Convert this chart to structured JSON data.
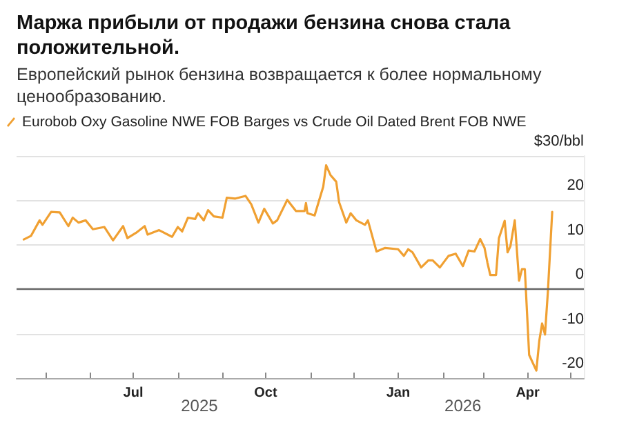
{
  "chart_data": {
    "type": "line",
    "title": "Маржа прибыли от продажи бензина снова стала положительной.",
    "subtitle": "Европейский рынок бензина возвращается к более нормальному ценообразованию.",
    "x": [
      "2025-04-16",
      "2025-04-21",
      "2025-04-27",
      "2025-04-29",
      "2025-05-05",
      "2025-05-11",
      "2025-05-17",
      "2025-05-20",
      "2025-05-24",
      "2025-05-29",
      "2025-06-03",
      "2025-06-11",
      "2025-06-17",
      "2025-06-24",
      "2025-06-27",
      "2025-07-03",
      "2025-07-09",
      "2025-07-11",
      "2025-07-19",
      "2025-07-28",
      "2025-08-01",
      "2025-08-04",
      "2025-08-08",
      "2025-08-13",
      "2025-08-15",
      "2025-08-19",
      "2025-08-22",
      "2025-08-26",
      "2025-09-01",
      "2025-09-04",
      "2025-09-10",
      "2025-09-17",
      "2025-09-21",
      "2025-09-26",
      "2025-09-30",
      "2025-10-06",
      "2025-10-09",
      "2025-10-16",
      "2025-10-22",
      "2025-10-28",
      "2025-10-29",
      "2025-10-30",
      "2025-11-04",
      "2025-11-10",
      "2025-11-12",
      "2025-11-15",
      "2025-11-19",
      "2025-11-21",
      "2025-11-26",
      "2025-11-29",
      "2025-12-03",
      "2025-12-09",
      "2025-12-11",
      "2025-12-17",
      "2025-12-23",
      "2026-01-01",
      "2026-01-05",
      "2026-01-08",
      "2026-01-11",
      "2026-01-17",
      "2026-01-22",
      "2026-01-25",
      "2026-01-30",
      "2026-02-05",
      "2026-02-10",
      "2026-02-15",
      "2026-02-19",
      "2026-02-23",
      "2026-02-27",
      "2026-03-02",
      "2026-03-04",
      "2026-03-06",
      "2026-03-10",
      "2026-03-12",
      "2026-03-16",
      "2026-03-18",
      "2026-03-20",
      "2026-03-23",
      "2026-03-26",
      "2026-03-28",
      "2026-03-30",
      "2026-04-02",
      "2026-04-07",
      "2026-04-09",
      "2026-04-11",
      "2026-04-13",
      "2026-04-15",
      "2026-04-18"
    ],
    "series": [
      {
        "name": "Eurobob Oxy Gasoline NWE FOB Barges vs Crude Oil Dated Brent FOB NWE",
        "color": "#f0a032",
        "values": [
          11.2,
          12.0,
          15.5,
          14.5,
          17.4,
          17.3,
          14.2,
          16.1,
          15.0,
          15.5,
          13.5,
          14.0,
          11.0,
          14.2,
          11.5,
          12.7,
          14.2,
          12.3,
          13.3,
          11.8,
          14.0,
          13.0,
          16.1,
          15.8,
          17.1,
          15.5,
          17.8,
          16.4,
          16.1,
          20.6,
          20.4,
          21.0,
          19.1,
          15.0,
          18.1,
          14.8,
          15.5,
          20.1,
          17.6,
          17.6,
          19.4,
          17.1,
          16.6,
          23.1,
          27.9,
          25.7,
          24.2,
          19.6,
          15.0,
          17.1,
          15.5,
          14.5,
          15.5,
          8.5,
          9.3,
          9.0,
          7.5,
          9.0,
          8.3,
          4.9,
          6.5,
          6.5,
          4.9,
          7.5,
          8.0,
          5.2,
          8.7,
          8.5,
          11.3,
          9.3,
          6.0,
          3.2,
          3.2,
          11.5,
          15.4,
          8.3,
          9.7,
          15.5,
          1.9,
          4.5,
          4.5,
          -14.8,
          -18.3,
          -11.7,
          -7.7,
          -10.2,
          -0.6,
          17.4
        ]
      }
    ],
    "xlim": [
      "2025-04-11",
      "2026-05-10"
    ],
    "xticks": [
      {
        "value": "2025-05-01",
        "label": null
      },
      {
        "value": "2025-06-01",
        "label": null
      },
      {
        "value": "2025-07-01",
        "label": "Jul"
      },
      {
        "value": "2025-08-01",
        "label": null
      },
      {
        "value": "2025-09-01",
        "label": null
      },
      {
        "value": "2025-10-01",
        "label": "Oct"
      },
      {
        "value": "2025-11-01",
        "label": null
      },
      {
        "value": "2025-12-01",
        "label": null
      },
      {
        "value": "2026-01-01",
        "label": "Jan"
      },
      {
        "value": "2026-02-01",
        "label": null
      },
      {
        "value": "2026-03-01",
        "label": null
      },
      {
        "value": "2026-04-01",
        "label": "Apr"
      },
      {
        "value": "2026-05-01",
        "label": null
      }
    ],
    "ylim": [
      -20,
      30
    ],
    "yticks": [
      -20,
      -10,
      0,
      10,
      20,
      {
        "value": 30,
        "label": "$30/bbl"
      }
    ],
    "grid": "y",
    "legend": "top left",
    "marker": "none",
    "line_style": "solid",
    "ref_lines": [
      {
        "axis": "y",
        "value": 0,
        "label": null,
        "color": "#666666"
      }
    ],
    "annotations": [
      "2025",
      "2026"
    ]
  }
}
